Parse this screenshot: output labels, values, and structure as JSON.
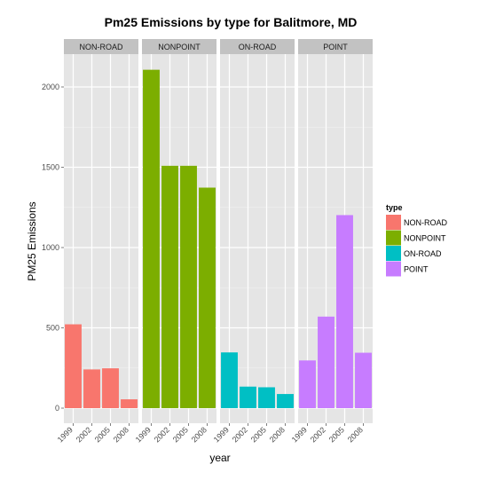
{
  "chart_data": {
    "type": "bar",
    "title": "Pm25 Emissions by type for Balitmore, MD",
    "xlabel": "year",
    "ylabel": "PM25 Emissions",
    "ylim": [
      0,
      2350
    ],
    "yticks": [
      0,
      500,
      1000,
      1500,
      2000
    ],
    "categories": [
      "1999",
      "2002",
      "2005",
      "2008"
    ],
    "legend": {
      "title": "type",
      "position": "right"
    },
    "grid": true,
    "panels": [
      {
        "name": "NON-ROAD",
        "color": "#F8766D",
        "values": [
          522,
          241,
          248,
          55
        ]
      },
      {
        "name": "NONPOINT",
        "color": "#7CAE00",
        "values": [
          2107,
          1509,
          1509,
          1373
        ]
      },
      {
        "name": "ON-ROAD",
        "color": "#00BFC4",
        "values": [
          347,
          134,
          130,
          88
        ]
      },
      {
        "name": "POINT",
        "color": "#C77CFF",
        "values": [
          297,
          570,
          1202,
          345
        ]
      }
    ]
  }
}
